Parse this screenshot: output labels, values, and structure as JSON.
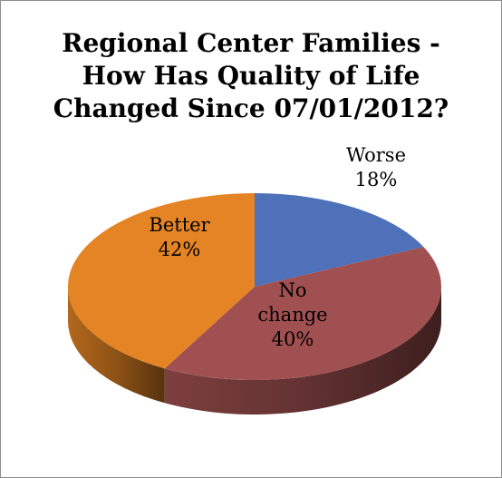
{
  "chart_data": {
    "type": "pie",
    "title_lines": [
      "Regional Center Families -",
      "How Has Quality of Life",
      "Changed Since 07/01/2012?"
    ],
    "slices": [
      {
        "label": "Worse",
        "value": 18,
        "value_label": "18%",
        "color": "#4f71b9",
        "label_lines": [
          "Worse",
          "18%"
        ]
      },
      {
        "label": "No change",
        "value": 40,
        "value_label": "40%",
        "color": "#a05050",
        "label_lines": [
          "No",
          "change",
          "40%"
        ]
      },
      {
        "label": "Better",
        "value": 42,
        "value_label": "42%",
        "color": "#e48424",
        "label_lines": [
          "Better",
          "42%"
        ]
      }
    ]
  }
}
